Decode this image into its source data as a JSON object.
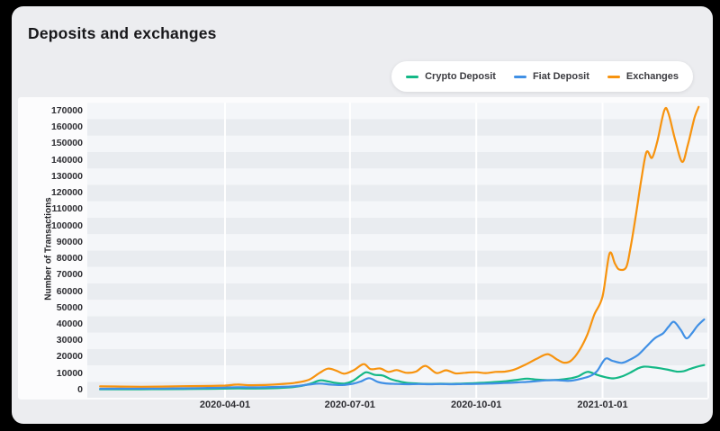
{
  "title": "Deposits and exchanges",
  "legend": {
    "items": [
      {
        "label": "Crypto Deposit",
        "color": "#14b886"
      },
      {
        "label": "Fiat Deposit",
        "color": "#4090e5"
      },
      {
        "label": "Exchanges",
        "color": "#f7930e"
      }
    ]
  },
  "y_axis": {
    "title": "Number of Transactions",
    "ticks": [
      0,
      10000,
      20000,
      30000,
      40000,
      50000,
      60000,
      70000,
      80000,
      90000,
      100000,
      110000,
      120000,
      130000,
      140000,
      150000,
      160000,
      170000
    ]
  },
  "x_axis": {
    "ticks": [
      {
        "label": "2020-04-01",
        "day": 91
      },
      {
        "label": "2020-07-01",
        "day": 182
      },
      {
        "label": "2020-10-01",
        "day": 274
      },
      {
        "label": "2021-01-01",
        "day": 366
      }
    ]
  },
  "style": {
    "stripe_light": "#f4f6f9",
    "stripe_dark": "#e9ecf0",
    "gridline": "#ffffff",
    "card_bg": "#ecedf0",
    "panel_bg": "#fcfcfd"
  },
  "chart_data": {
    "type": "line",
    "title": "Deposits and exchanges",
    "xlabel": "",
    "ylabel": "Number of Transactions",
    "x_unit": "days since 2020-01-01",
    "x_tick_labels": [
      "2020-04-01",
      "2020-07-01",
      "2020-10-01",
      "2021-01-01"
    ],
    "x_range_days": [
      0,
      440
    ],
    "ylim": [
      0,
      170000
    ],
    "grid": "horizontal striped bands every 10000, white vertical quarter lines",
    "legend_position": "top-right pill",
    "series": [
      {
        "name": "Crypto Deposit",
        "color": "#14b886",
        "points": [
          [
            0,
            400
          ],
          [
            15,
            420
          ],
          [
            30,
            450
          ],
          [
            45,
            500
          ],
          [
            60,
            560
          ],
          [
            75,
            640
          ],
          [
            91,
            800
          ],
          [
            100,
            950
          ],
          [
            110,
            900
          ],
          [
            120,
            1000
          ],
          [
            132,
            1300
          ],
          [
            142,
            1900
          ],
          [
            152,
            3500
          ],
          [
            160,
            5800
          ],
          [
            166,
            5200
          ],
          [
            172,
            4300
          ],
          [
            178,
            3900
          ],
          [
            184,
            5500
          ],
          [
            190,
            9000
          ],
          [
            194,
            10800
          ],
          [
            200,
            9200
          ],
          [
            206,
            8800
          ],
          [
            212,
            6500
          ],
          [
            218,
            5200
          ],
          [
            224,
            4300
          ],
          [
            232,
            3900
          ],
          [
            240,
            3700
          ],
          [
            248,
            3800
          ],
          [
            256,
            3700
          ],
          [
            264,
            3900
          ],
          [
            274,
            4200
          ],
          [
            284,
            4600
          ],
          [
            294,
            5200
          ],
          [
            304,
            6200
          ],
          [
            311,
            6900
          ],
          [
            318,
            6300
          ],
          [
            326,
            6000
          ],
          [
            334,
            6200
          ],
          [
            342,
            7000
          ],
          [
            348,
            8200
          ],
          [
            355,
            11000
          ],
          [
            362,
            9200
          ],
          [
            368,
            7800
          ],
          [
            374,
            7100
          ],
          [
            380,
            8200
          ],
          [
            386,
            10500
          ],
          [
            392,
            13200
          ],
          [
            396,
            14200
          ],
          [
            402,
            13900
          ],
          [
            408,
            13200
          ],
          [
            414,
            12300
          ],
          [
            420,
            11200
          ],
          [
            425,
            11400
          ],
          [
            429,
            12600
          ],
          [
            434,
            14000
          ],
          [
            440,
            15200
          ]
        ]
      },
      {
        "name": "Fiat Deposit",
        "color": "#4090e5",
        "points": [
          [
            0,
            700
          ],
          [
            15,
            800
          ],
          [
            30,
            800
          ],
          [
            45,
            900
          ],
          [
            60,
            1000
          ],
          [
            75,
            1200
          ],
          [
            91,
            1500
          ],
          [
            100,
            1700
          ],
          [
            110,
            1600
          ],
          [
            120,
            1700
          ],
          [
            132,
            1900
          ],
          [
            142,
            2300
          ],
          [
            152,
            3300
          ],
          [
            160,
            3900
          ],
          [
            168,
            3300
          ],
          [
            176,
            3000
          ],
          [
            184,
            3800
          ],
          [
            190,
            5200
          ],
          [
            196,
            7200
          ],
          [
            202,
            5000
          ],
          [
            208,
            4000
          ],
          [
            216,
            3700
          ],
          [
            224,
            3500
          ],
          [
            232,
            3600
          ],
          [
            240,
            3500
          ],
          [
            248,
            3600
          ],
          [
            256,
            3500
          ],
          [
            264,
            3600
          ],
          [
            274,
            3700
          ],
          [
            284,
            3900
          ],
          [
            294,
            4200
          ],
          [
            304,
            4600
          ],
          [
            314,
            5100
          ],
          [
            324,
            5800
          ],
          [
            332,
            6000
          ],
          [
            342,
            5600
          ],
          [
            350,
            6800
          ],
          [
            357,
            8500
          ],
          [
            362,
            11500
          ],
          [
            368,
            19000
          ],
          [
            373,
            17800
          ],
          [
            380,
            16500
          ],
          [
            386,
            18500
          ],
          [
            392,
            21500
          ],
          [
            398,
            26500
          ],
          [
            404,
            31500
          ],
          [
            410,
            34500
          ],
          [
            414,
            38500
          ],
          [
            418,
            41500
          ],
          [
            423,
            36500
          ],
          [
            427,
            31500
          ],
          [
            431,
            34500
          ],
          [
            435,
            39000
          ],
          [
            440,
            43000
          ]
        ]
      },
      {
        "name": "Exchanges",
        "color": "#f7930e",
        "points": [
          [
            0,
            2200
          ],
          [
            15,
            2100
          ],
          [
            30,
            2000
          ],
          [
            45,
            2100
          ],
          [
            60,
            2300
          ],
          [
            75,
            2400
          ],
          [
            91,
            2700
          ],
          [
            100,
            3300
          ],
          [
            108,
            2900
          ],
          [
            120,
            3000
          ],
          [
            132,
            3600
          ],
          [
            142,
            4400
          ],
          [
            152,
            6200
          ],
          [
            160,
            10500
          ],
          [
            166,
            13000
          ],
          [
            172,
            11800
          ],
          [
            178,
            9900
          ],
          [
            185,
            12200
          ],
          [
            192,
            15800
          ],
          [
            197,
            12700
          ],
          [
            204,
            13100
          ],
          [
            210,
            11000
          ],
          [
            216,
            12100
          ],
          [
            223,
            10500
          ],
          [
            230,
            11200
          ],
          [
            237,
            14700
          ],
          [
            245,
            10300
          ],
          [
            252,
            12000
          ],
          [
            259,
            10100
          ],
          [
            266,
            10500
          ],
          [
            274,
            10800
          ],
          [
            281,
            10300
          ],
          [
            288,
            11000
          ],
          [
            295,
            11200
          ],
          [
            302,
            12500
          ],
          [
            310,
            15500
          ],
          [
            318,
            19000
          ],
          [
            326,
            21800
          ],
          [
            333,
            18500
          ],
          [
            338,
            16600
          ],
          [
            343,
            17800
          ],
          [
            349,
            24000
          ],
          [
            355,
            34000
          ],
          [
            360,
            46000
          ],
          [
            366,
            57000
          ],
          [
            371,
            83000
          ],
          [
            375,
            77000
          ],
          [
            378,
            73500
          ],
          [
            383,
            74500
          ],
          [
            386,
            85000
          ],
          [
            390,
            105000
          ],
          [
            394,
            127000
          ],
          [
            398,
            145000
          ],
          [
            402,
            141500
          ],
          [
            406,
            152000
          ],
          [
            411,
            170500
          ],
          [
            414,
            168500
          ],
          [
            419,
            152000
          ],
          [
            424,
            139000
          ],
          [
            428,
            149000
          ],
          [
            433,
            166000
          ],
          [
            436,
            172500
          ]
        ]
      }
    ]
  }
}
